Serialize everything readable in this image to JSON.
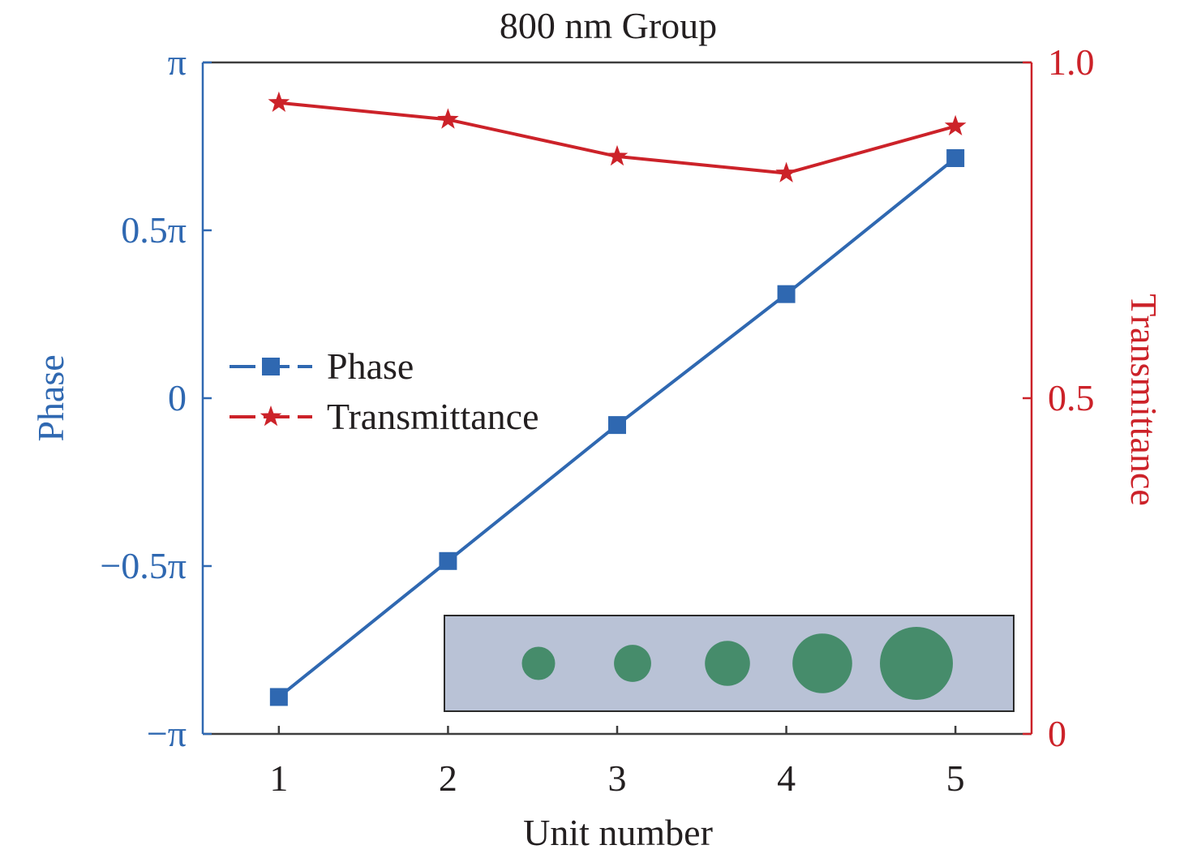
{
  "chart_data": {
    "type": "line",
    "title": "800 nm Group",
    "xlabel": "Unit number",
    "ylabel_left": "Phase",
    "ylabel_right": "Transmittance",
    "x": [
      1,
      2,
      3,
      4,
      5
    ],
    "xlim": [
      0.55,
      5.45
    ],
    "x_ticks": [
      "1",
      "2",
      "3",
      "4",
      "5"
    ],
    "left_axis": {
      "ylim_pi": [
        -1,
        1
      ],
      "ticks_pi": [
        -1,
        -0.5,
        0,
        0.5,
        1
      ],
      "tick_labels": [
        "−π",
        "−0.5π",
        "0",
        "0.5π",
        "π"
      ]
    },
    "right_axis": {
      "ylim": [
        0,
        1
      ],
      "ticks": [
        0,
        0.5,
        1.0
      ],
      "tick_labels": [
        "0",
        "0.5",
        "1.0"
      ]
    },
    "series": [
      {
        "name": "Phase",
        "axis": "left",
        "unit": "π rad",
        "values": [
          -0.89,
          -0.485,
          -0.08,
          0.31,
          0.715
        ],
        "marker": "square",
        "color": "#2f68b1"
      },
      {
        "name": "Transmittance",
        "axis": "right",
        "values": [
          0.94,
          0.915,
          0.86,
          0.835,
          0.905
        ],
        "marker": "star",
        "color": "#cc2229"
      }
    ],
    "legend_position": "center-left",
    "inset": {
      "description_type": "unit-cell-pillars",
      "background": "#b9c2d6",
      "pillar_color": "#468c6b",
      "relative_diameters": [
        0.25,
        0.28,
        0.34,
        0.45,
        0.55
      ]
    },
    "grid": false
  }
}
